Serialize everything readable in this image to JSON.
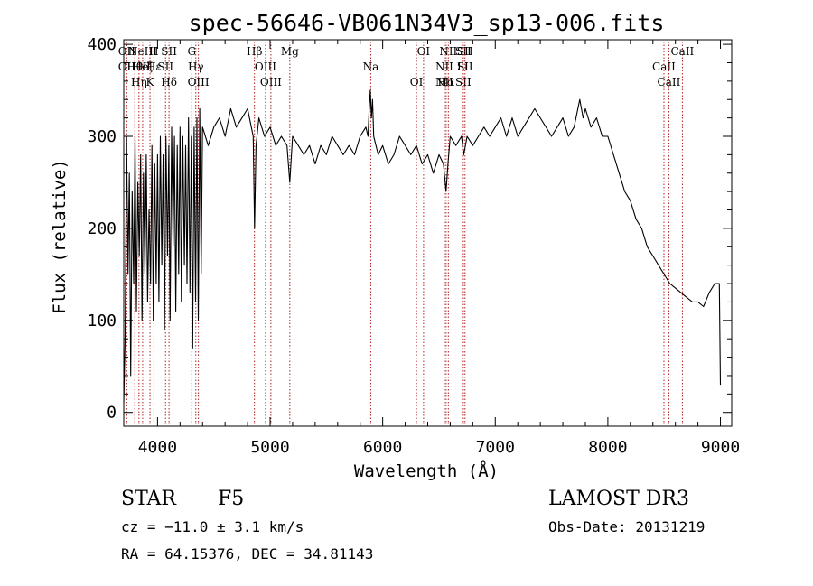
{
  "chart_data": {
    "type": "line",
    "title": "spec-56646-VB061N34V3_sp13-006.fits",
    "xlabel": "Wavelength (Å)",
    "ylabel": "Flux (relative)",
    "xlim": [
      3700,
      9100
    ],
    "ylim": [
      -15,
      405
    ],
    "x_ticks": [
      4000,
      5000,
      6000,
      7000,
      8000,
      9000
    ],
    "y_ticks": [
      0,
      100,
      200,
      300,
      400
    ],
    "grid": false,
    "line_color": "#000000",
    "marker_color": "#b22222",
    "series": [
      {
        "name": "flux",
        "x": [
          3700,
          3712,
          3725,
          3738,
          3750,
          3762,
          3775,
          3788,
          3800,
          3812,
          3825,
          3838,
          3850,
          3862,
          3875,
          3888,
          3900,
          3912,
          3925,
          3938,
          3950,
          3962,
          3975,
          3988,
          4000,
          4012,
          4025,
          4038,
          4050,
          4062,
          4075,
          4088,
          4100,
          4112,
          4125,
          4138,
          4150,
          4162,
          4175,
          4188,
          4200,
          4212,
          4225,
          4238,
          4250,
          4262,
          4275,
          4288,
          4300,
          4312,
          4325,
          4338,
          4350,
          4362,
          4375,
          4388,
          4400,
          4450,
          4500,
          4550,
          4600,
          4650,
          4700,
          4750,
          4800,
          4850,
          4862,
          4875,
          4900,
          4950,
          5000,
          5050,
          5100,
          5150,
          5175,
          5200,
          5250,
          5300,
          5350,
          5400,
          5450,
          5500,
          5550,
          5600,
          5650,
          5700,
          5750,
          5800,
          5850,
          5870,
          5880,
          5890,
          5900,
          5910,
          5920,
          5940,
          5960,
          6000,
          6050,
          6100,
          6150,
          6200,
          6250,
          6300,
          6350,
          6400,
          6450,
          6500,
          6540,
          6563,
          6580,
          6600,
          6650,
          6700,
          6720,
          6750,
          6800,
          6850,
          6900,
          6950,
          7000,
          7050,
          7100,
          7150,
          7200,
          7250,
          7300,
          7350,
          7400,
          7450,
          7500,
          7550,
          7600,
          7650,
          7700,
          7750,
          7780,
          7800,
          7850,
          7900,
          7950,
          8000,
          8050,
          8100,
          8150,
          8200,
          8250,
          8300,
          8350,
          8400,
          8450,
          8500,
          8550,
          8600,
          8650,
          8700,
          8750,
          8800,
          8850,
          8900,
          8950,
          8990,
          9000
        ],
        "y": [
          10,
          80,
          300,
          150,
          260,
          40,
          240,
          140,
          300,
          110,
          250,
          170,
          280,
          100,
          260,
          150,
          280,
          120,
          220,
          140,
          290,
          100,
          270,
          140,
          280,
          120,
          300,
          160,
          280,
          90,
          300,
          170,
          290,
          100,
          310,
          180,
          300,
          110,
          290,
          150,
          310,
          120,
          300,
          160,
          290,
          140,
          320,
          130,
          300,
          70,
          310,
          120,
          320,
          100,
          330,
          150,
          310,
          290,
          310,
          320,
          300,
          330,
          310,
          320,
          330,
          300,
          200,
          290,
          320,
          300,
          310,
          290,
          300,
          290,
          250,
          300,
          290,
          280,
          290,
          270,
          290,
          280,
          300,
          290,
          280,
          290,
          280,
          300,
          310,
          300,
          330,
          350,
          320,
          340,
          300,
          290,
          280,
          290,
          270,
          280,
          300,
          290,
          280,
          290,
          270,
          280,
          260,
          280,
          270,
          240,
          270,
          300,
          290,
          300,
          280,
          300,
          290,
          300,
          310,
          300,
          310,
          320,
          300,
          320,
          300,
          310,
          320,
          330,
          320,
          310,
          300,
          310,
          320,
          300,
          310,
          340,
          320,
          330,
          310,
          320,
          300,
          300,
          280,
          260,
          240,
          230,
          210,
          200,
          180,
          170,
          160,
          150,
          140,
          135,
          130,
          125,
          120,
          120,
          115,
          130,
          140,
          140,
          30
        ]
      }
    ],
    "line_markers": [
      {
        "x": 3727,
        "labels": [
          "OII",
          "OII"
        ]
      },
      {
        "x": 3798,
        "labels": [
          "Hθ"
        ]
      },
      {
        "x": 3835,
        "labels": [
          "Hη"
        ]
      },
      {
        "x": 3868,
        "labels": [
          "NeIII",
          "HeI"
        ]
      },
      {
        "x": 3889,
        "labels": [
          "Hζ"
        ]
      },
      {
        "x": 3933,
        "labels": [
          "K"
        ]
      },
      {
        "x": 3968,
        "labels": [
          "H",
          "Hε"
        ]
      },
      {
        "x": 4071,
        "labels": [
          "SII"
        ]
      },
      {
        "x": 4102,
        "labels": [
          "Hδ",
          "SII"
        ]
      },
      {
        "x": 4304,
        "labels": [
          "G"
        ]
      },
      {
        "x": 4340,
        "labels": [
          "Hγ"
        ]
      },
      {
        "x": 4363,
        "labels": [
          "OIII"
        ]
      },
      {
        "x": 4861,
        "labels": [
          "Hβ"
        ]
      },
      {
        "x": 4959,
        "labels": [
          "OIII"
        ]
      },
      {
        "x": 5007,
        "labels": [
          "OIII"
        ]
      },
      {
        "x": 5175,
        "labels": [
          "Mg"
        ]
      },
      {
        "x": 5894,
        "labels": [
          "Na"
        ]
      },
      {
        "x": 6300,
        "labels": [
          "OI"
        ]
      },
      {
        "x": 6363,
        "labels": [
          "OI"
        ]
      },
      {
        "x": 6548,
        "labels": [
          "NII",
          "NII"
        ]
      },
      {
        "x": 6563,
        "labels": [
          "Hα"
        ]
      },
      {
        "x": 6583,
        "labels": [
          "NII"
        ]
      },
      {
        "x": 6708,
        "labels": [
          "Li"
        ]
      },
      {
        "x": 6716,
        "labels": [
          "SII",
          "SII"
        ]
      },
      {
        "x": 6731,
        "labels": [
          "SII",
          "SII"
        ]
      },
      {
        "x": 8498,
        "labels": [
          "CaII"
        ]
      },
      {
        "x": 8542,
        "labels": [
          "CaII"
        ]
      },
      {
        "x": 8662,
        "labels": [
          "CaII"
        ]
      }
    ]
  },
  "footer": {
    "object_type": "STAR",
    "subclass": "F5",
    "cz": "cz = −11.0 ± 3.1 km/s",
    "coords": "RA =  64.15376, DEC =  34.81143",
    "survey": "LAMOST DR3",
    "obs_date": "Obs-Date: 20131219"
  }
}
